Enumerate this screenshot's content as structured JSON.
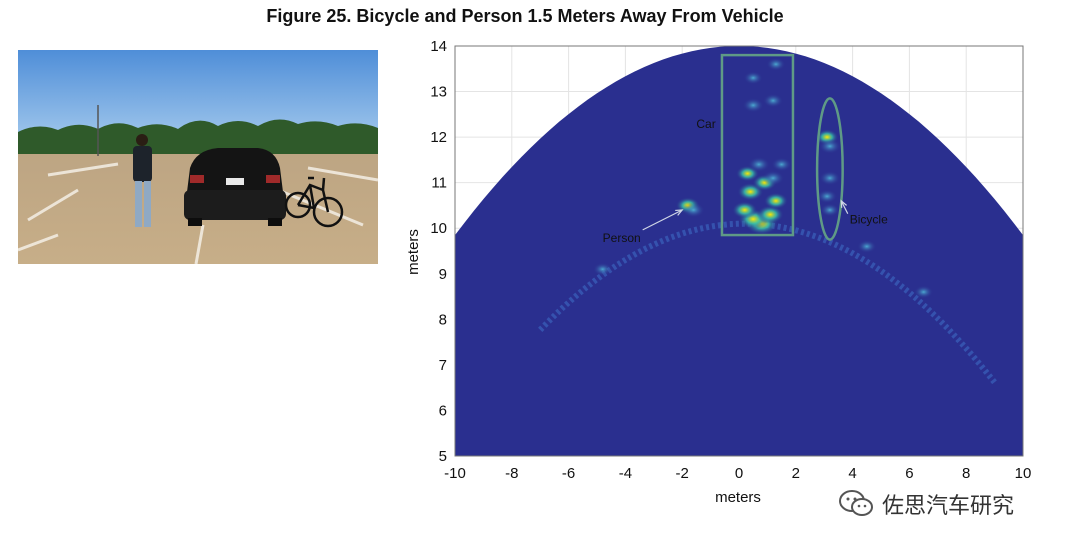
{
  "figure": {
    "title": "Figure 25. Bicycle and Person 1.5 Meters Away From Vehicle"
  },
  "photo": {
    "description_icon": "photo-parking-lot-car-person-bicycle"
  },
  "watermark": {
    "text": "佐思汽车研究",
    "icon": "wechat-icon"
  },
  "colors": {
    "field_background": "#2a2f8f",
    "outside_fov": "#ffffff",
    "box_outline": "#5f9a86",
    "hot": "#ffe600",
    "warm": "#38c1a8"
  },
  "chart_data": {
    "type": "heatmap",
    "title": "",
    "xlabel": "meters",
    "ylabel": "meters",
    "xlim": [
      -10,
      10
    ],
    "ylim": [
      5,
      14
    ],
    "xticks": [
      "-10",
      "-8",
      "-6",
      "-4",
      "-2",
      "0",
      "2",
      "4",
      "6",
      "8",
      "10"
    ],
    "yticks": [
      "5",
      "6",
      "7",
      "8",
      "9",
      "10",
      "11",
      "12",
      "13",
      "14"
    ],
    "grid": true,
    "annotations": [
      {
        "label": "Car",
        "text_x": -1.5,
        "text_y": 12.2
      },
      {
        "label": "Person",
        "text_x": -4.8,
        "text_y": 9.7,
        "arrow_to_x": -2.0,
        "arrow_to_y": 10.4
      },
      {
        "label": "Bicycle",
        "text_x": 3.9,
        "text_y": 10.1,
        "arrow_to_x": 3.6,
        "arrow_to_y": 10.6
      }
    ],
    "regions": [
      {
        "name": "car-box",
        "shape": "rect",
        "x0": -0.6,
        "x1": 1.9,
        "y0": 9.85,
        "y1": 13.8
      },
      {
        "name": "bicycle-ellipse",
        "shape": "ellipse",
        "cx": 3.2,
        "cy": 11.3,
        "rx": 0.45,
        "ry": 1.55
      }
    ],
    "detections": [
      {
        "x": 0.8,
        "y": 10.1,
        "intensity": 1.0
      },
      {
        "x": 0.5,
        "y": 10.2,
        "intensity": 0.85
      },
      {
        "x": 1.1,
        "y": 10.3,
        "intensity": 0.7
      },
      {
        "x": 0.2,
        "y": 10.4,
        "intensity": 0.6
      },
      {
        "x": 1.3,
        "y": 10.6,
        "intensity": 0.55
      },
      {
        "x": 0.4,
        "y": 10.8,
        "intensity": 0.65
      },
      {
        "x": 0.9,
        "y": 11.0,
        "intensity": 0.55
      },
      {
        "x": 0.3,
        "y": 11.2,
        "intensity": 0.5
      },
      {
        "x": 1.2,
        "y": 11.1,
        "intensity": 0.45
      },
      {
        "x": 0.7,
        "y": 11.4,
        "intensity": 0.45
      },
      {
        "x": 1.5,
        "y": 11.4,
        "intensity": 0.35
      },
      {
        "x": 0.5,
        "y": 12.7,
        "intensity": 0.4
      },
      {
        "x": 1.2,
        "y": 12.8,
        "intensity": 0.35
      },
      {
        "x": 0.5,
        "y": 13.3,
        "intensity": 0.3
      },
      {
        "x": 1.3,
        "y": 13.6,
        "intensity": 0.3
      },
      {
        "x": 3.1,
        "y": 12.0,
        "intensity": 0.5
      },
      {
        "x": 3.2,
        "y": 11.8,
        "intensity": 0.45
      },
      {
        "x": 3.2,
        "y": 11.1,
        "intensity": 0.4
      },
      {
        "x": 3.1,
        "y": 10.7,
        "intensity": 0.35
      },
      {
        "x": 3.2,
        "y": 10.4,
        "intensity": 0.3
      },
      {
        "x": -1.8,
        "y": 10.5,
        "intensity": 0.55
      },
      {
        "x": -1.6,
        "y": 10.4,
        "intensity": 0.45
      },
      {
        "x": -4.8,
        "y": 9.1,
        "intensity": 0.3
      },
      {
        "x": 4.5,
        "y": 9.6,
        "intensity": 0.3
      },
      {
        "x": 6.5,
        "y": 8.6,
        "intensity": 0.3
      }
    ],
    "arc": {
      "description": "elevated-return-arc",
      "cx": 0.2,
      "top_y": 10.1
    }
  }
}
